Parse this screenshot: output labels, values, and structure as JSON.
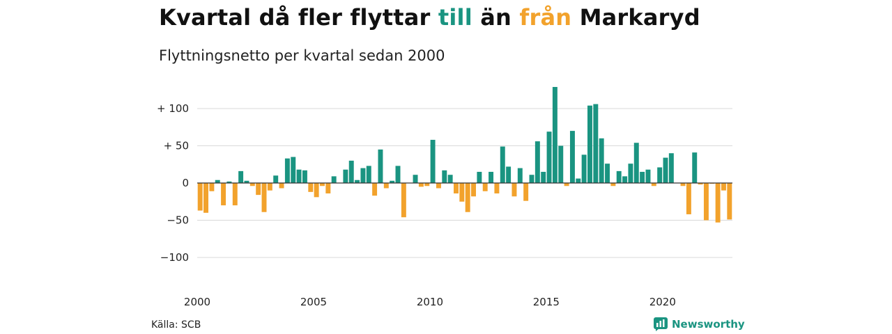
{
  "title": {
    "prefix": "Kvartal då fler flyttar ",
    "highlight_in": "till",
    "middle": " än ",
    "highlight_out": "från",
    "suffix": " Markaryd"
  },
  "subtitle": "Flyttningsnetto per kvartal sedan 2000",
  "source": "Källa: SCB",
  "brand": "Newsworthy",
  "colors": {
    "positive": "#1a9481",
    "negative": "#f2a22c",
    "grid": "#d9d9d9",
    "zero": "#333333"
  },
  "chart_data": {
    "type": "bar",
    "title": "Kvartal då fler flyttar till än från Markaryd",
    "subtitle": "Flyttningsnetto per kvartal sedan 2000",
    "x_start": "2000 Q1",
    "ylim": [
      -115,
      130
    ],
    "y_ticks": [
      100,
      50,
      0,
      -50,
      -100
    ],
    "y_tick_labels": [
      "+ 100",
      "+  50",
      "0",
      "−50",
      "−100"
    ],
    "x_ticks": [
      2000,
      2005,
      2010,
      2015,
      2020
    ],
    "x_tick_labels": [
      "2000",
      "2005",
      "2010",
      "2015",
      "2020"
    ],
    "grid": true,
    "values": [
      -37,
      -40,
      -11,
      4,
      -30,
      2,
      -30,
      16,
      3,
      -4,
      -16,
      -39,
      -10,
      10,
      -7,
      33,
      35,
      18,
      17,
      -12,
      -19,
      -4,
      -14,
      9,
      0,
      18,
      30,
      4,
      20,
      23,
      -17,
      45,
      -7,
      3,
      23,
      -46,
      0,
      11,
      -5,
      -4,
      58,
      -7,
      17,
      11,
      -14,
      -25,
      -39,
      -18,
      15,
      -11,
      15,
      -14,
      49,
      22,
      -18,
      20,
      -24,
      11,
      56,
      15,
      69,
      129,
      50,
      -4,
      70,
      6,
      38,
      104,
      106,
      60,
      26,
      -4,
      16,
      9,
      26,
      54,
      15,
      18,
      -4,
      21,
      34,
      40,
      0,
      -4,
      -42,
      41,
      -2,
      -50,
      -1,
      -53,
      -10,
      -49
    ]
  }
}
